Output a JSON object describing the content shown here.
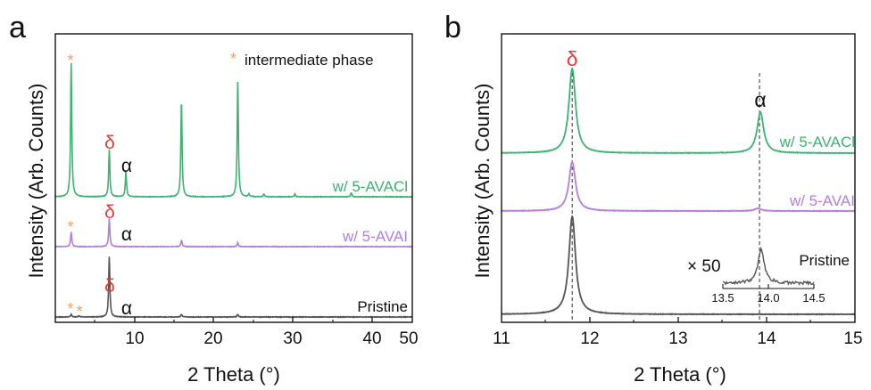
{
  "chart_data": [
    {
      "panel": "a",
      "type": "line",
      "xlabel": "2 Theta (°)",
      "ylabel": "Intensity (Arb. Counts)",
      "xlim": [
        5,
        50
      ],
      "xticks": [
        10,
        20,
        30,
        40,
        50
      ],
      "legend_note": {
        "symbol": "*",
        "text": "intermediate phase",
        "color": "#F5A05A"
      },
      "series": [
        {
          "name": "w/ 5-AVACl",
          "color": "#3CB371",
          "peaks": [
            {
              "x": 7.0,
              "y": 1.0
            },
            {
              "x": 11.8,
              "y": 0.35
            },
            {
              "x": 13.9,
              "y": 0.19
            },
            {
              "x": 20.9,
              "y": 0.72
            },
            {
              "x": 28.0,
              "y": 0.86
            },
            {
              "x": 29.4,
              "y": 0.02
            },
            {
              "x": 31.3,
              "y": 0.02
            },
            {
              "x": 35.2,
              "y": 0.02
            },
            {
              "x": 42.3,
              "y": 0.03
            }
          ],
          "markers": [
            {
              "x": 7.0,
              "symbol": "*",
              "color": "#F5A05A"
            },
            {
              "x": 11.8,
              "symbol": "δ",
              "color": "#E53935"
            },
            {
              "x": 13.9,
              "symbol": "α",
              "color": "#111111"
            }
          ]
        },
        {
          "name": "w/ 5-AVAI",
          "color": "#B57EDC",
          "peaks": [
            {
              "x": 7.0,
              "y": 0.11
            },
            {
              "x": 11.8,
              "y": 0.21
            },
            {
              "x": 20.9,
              "y": 0.05
            },
            {
              "x": 28.0,
              "y": 0.03
            }
          ],
          "markers": [
            {
              "x": 7.0,
              "symbol": "*",
              "color": "#F5A05A"
            },
            {
              "x": 11.8,
              "symbol": "δ",
              "color": "#E53935"
            },
            {
              "x": 13.9,
              "symbol": "α",
              "color": "#111111"
            }
          ]
        },
        {
          "name": "Pristine",
          "color": "#555555",
          "peaks": [
            {
              "x": 7.0,
              "y": 0.02
            },
            {
              "x": 8.0,
              "y": 0.01
            },
            {
              "x": 11.8,
              "y": 0.45
            },
            {
              "x": 20.9,
              "y": 0.02
            },
            {
              "x": 28.0,
              "y": 0.02
            }
          ],
          "markers": [
            {
              "x": 7.0,
              "symbol": "*",
              "color": "#F5A05A"
            },
            {
              "x": 8.0,
              "symbol": "*",
              "color": "#F5A05A"
            },
            {
              "x": 11.8,
              "symbol": "δ",
              "color": "#E53935"
            },
            {
              "x": 13.9,
              "symbol": "α",
              "color": "#111111"
            }
          ]
        }
      ]
    },
    {
      "panel": "b",
      "type": "line",
      "xlabel": "2 Theta (°)",
      "ylabel": "Intensity (Arb. Counts)",
      "xlim": [
        11,
        15
      ],
      "xticks": [
        11,
        12,
        13,
        14,
        15
      ],
      "reference_lines": [
        11.8,
        13.92
      ],
      "series": [
        {
          "name": "w/ 5-AVACl",
          "color": "#3CB371",
          "peaks": [
            {
              "x": 11.8,
              "y": 0.95
            },
            {
              "x": 13.93,
              "y": 0.46
            }
          ],
          "markers": [
            {
              "x": 11.8,
              "symbol": "δ",
              "color": "#E53935"
            },
            {
              "x": 13.93,
              "symbol": "α",
              "color": "#111111"
            }
          ]
        },
        {
          "name": "w/ 5-AVAI",
          "color": "#B57EDC",
          "peaks": [
            {
              "x": 11.8,
              "y": 0.55
            },
            {
              "x": 13.9,
              "y": 0.03
            }
          ]
        },
        {
          "name": "Pristine",
          "color": "#555555",
          "peaks": [
            {
              "x": 11.8,
              "y": 1.1
            }
          ]
        }
      ],
      "inset": {
        "label": "× 50",
        "xlim": [
          13.5,
          14.5
        ],
        "xticks": [
          "13.5",
          "14.0",
          "14.5"
        ],
        "peak": {
          "x": 13.92,
          "y": 1.0
        },
        "color": "#555555"
      }
    }
  ],
  "panels": {
    "a": {
      "letter": "a",
      "xlabel": "2 Theta (°)",
      "ylabel": "Intensity (Arb. Counts)",
      "xticks": [
        "10",
        "20",
        "30",
        "40",
        "50"
      ],
      "note_star": "*",
      "note_text": "intermediate phase",
      "series_labels": [
        "w/ 5-AVACl",
        "w/ 5-AVAI",
        "Pristine"
      ]
    },
    "b": {
      "letter": "b",
      "xlabel": "2 Theta (°)",
      "ylabel": "Intensity (Arb. Counts)",
      "xticks": [
        "11",
        "12",
        "13",
        "14",
        "15"
      ],
      "series_labels": [
        "w/ 5-AVACl",
        "w/ 5-AVAI",
        "Pristine"
      ],
      "inset_label": "× 50",
      "inset_xticks": [
        "13.5",
        "14.0",
        "14.5"
      ]
    }
  }
}
